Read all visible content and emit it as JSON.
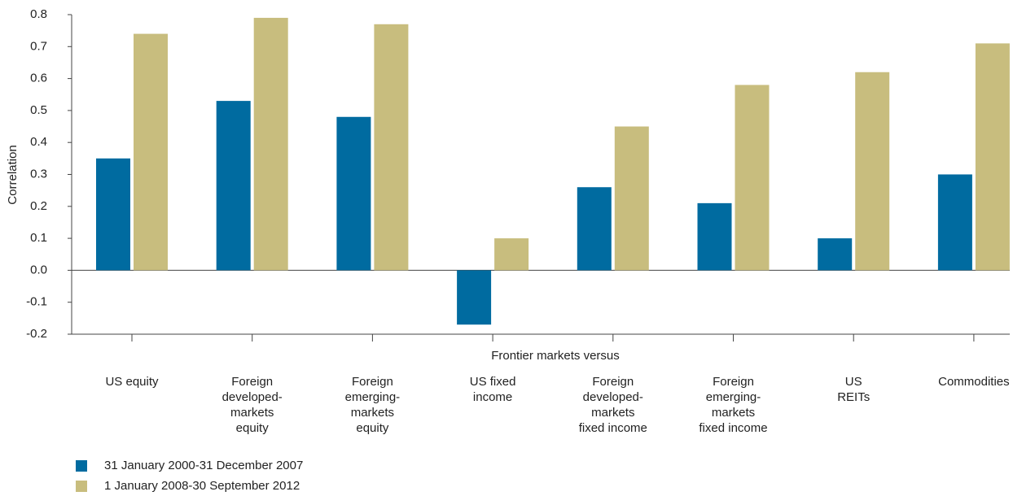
{
  "chart_data": {
    "type": "bar",
    "y_label": "Correlation",
    "x_label": "Frontier markets versus",
    "categories": [
      [
        "US equity"
      ],
      [
        "Foreign",
        "developed-",
        "markets",
        "equity"
      ],
      [
        "Foreign",
        "emerging-",
        "markets",
        "equity"
      ],
      [
        "US fixed",
        "income"
      ],
      [
        "Foreign",
        "developed-",
        "markets",
        "fixed income"
      ],
      [
        "Foreign",
        "emerging-",
        "markets",
        "fixed income"
      ],
      [
        "US",
        "REITs"
      ],
      [
        "Commodities"
      ]
    ],
    "series": [
      {
        "name": "31 January 2000-31 December 2007",
        "color": "#006ba0",
        "values": [
          0.35,
          0.53,
          0.48,
          -0.17,
          0.26,
          0.21,
          0.1,
          0.3
        ]
      },
      {
        "name": "1 January 2008-30 September 2012",
        "color": "#c8bd7e",
        "values": [
          0.74,
          0.79,
          0.77,
          0.1,
          0.45,
          0.58,
          0.62,
          0.71
        ]
      }
    ],
    "ylim": [
      -0.2,
      0.8
    ],
    "yticks": [
      -0.2,
      -0.1,
      {
        "value": 0,
        "label": "0.0"
      },
      0.1,
      0.2,
      0.3,
      0.4,
      0.5,
      0.6,
      0.7,
      0.8
    ],
    "grid": false,
    "legend": "bottom-left"
  }
}
